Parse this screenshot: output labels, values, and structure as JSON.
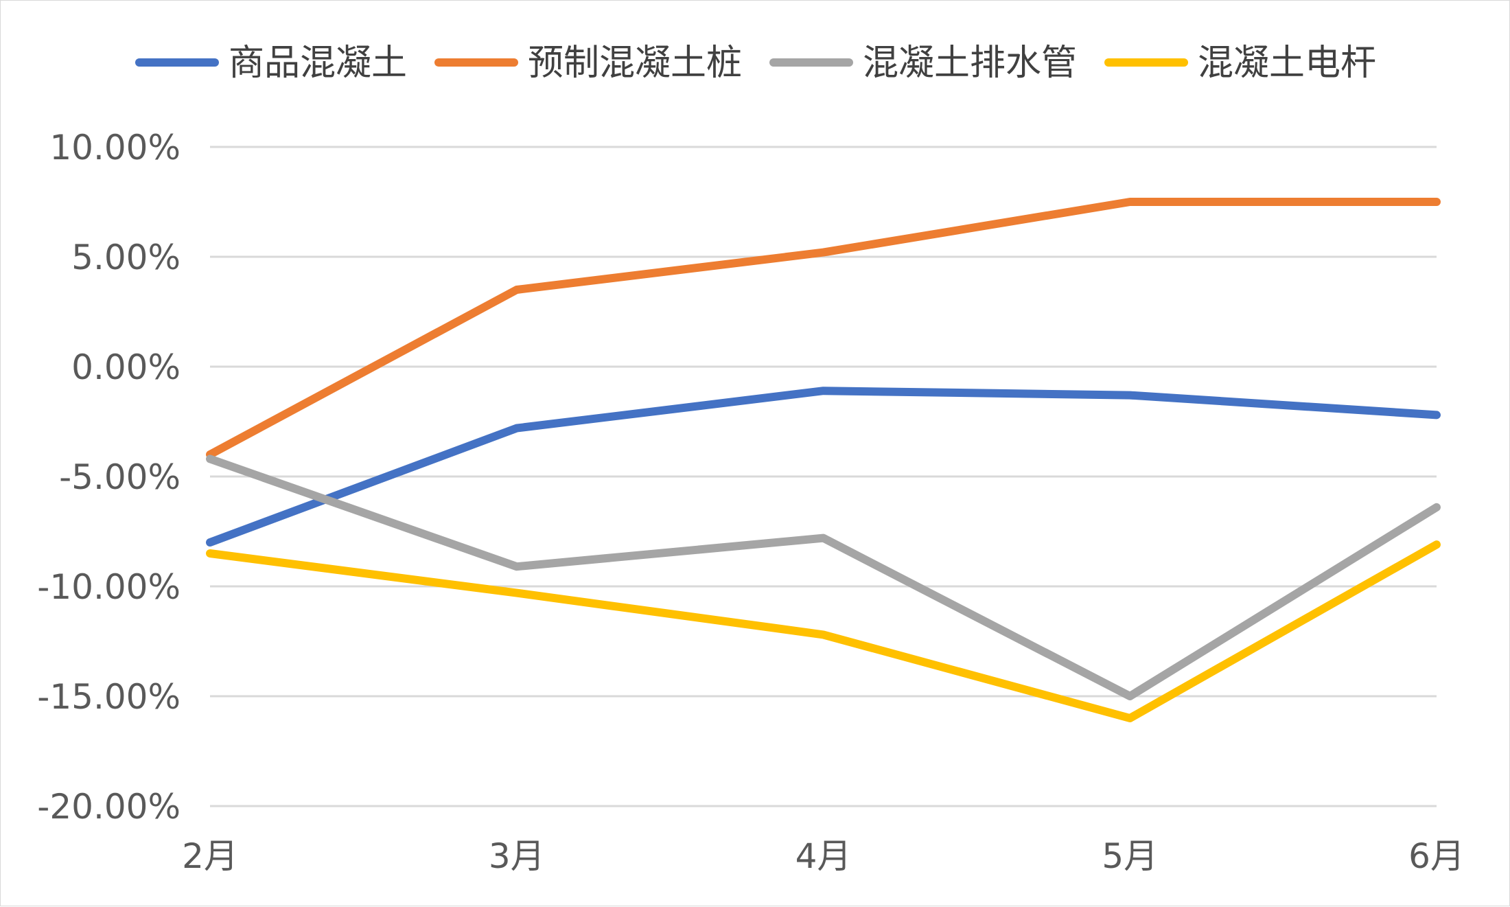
{
  "chart_data": {
    "type": "line",
    "title": "",
    "xlabel": "",
    "ylabel": "",
    "categories": [
      "2月",
      "3月",
      "4月",
      "5月",
      "6月"
    ],
    "ylim": [
      -20,
      10
    ],
    "ystep": 5,
    "ytick_labels": [
      "10.00%",
      "5.00%",
      "0.00%",
      "-5.00%",
      "-10.00%",
      "-15.00%",
      "-20.00%"
    ],
    "grid": true,
    "legend_position": "top",
    "series": [
      {
        "name": "商品混凝土",
        "color": "#4472C4",
        "values": [
          -8.0,
          -2.8,
          -1.1,
          -1.3,
          -2.2
        ]
      },
      {
        "name": "预制混凝土桩",
        "color": "#ED7D31",
        "values": [
          -4.0,
          3.5,
          5.2,
          7.5,
          7.5
        ]
      },
      {
        "name": "混凝土排水管",
        "color": "#A5A5A5",
        "values": [
          -4.2,
          -9.1,
          -7.8,
          -15.0,
          -6.4
        ]
      },
      {
        "name": "混凝土电杆",
        "color": "#FFC000",
        "values": [
          -8.5,
          -10.3,
          -12.2,
          -16.0,
          -8.1
        ]
      }
    ]
  }
}
